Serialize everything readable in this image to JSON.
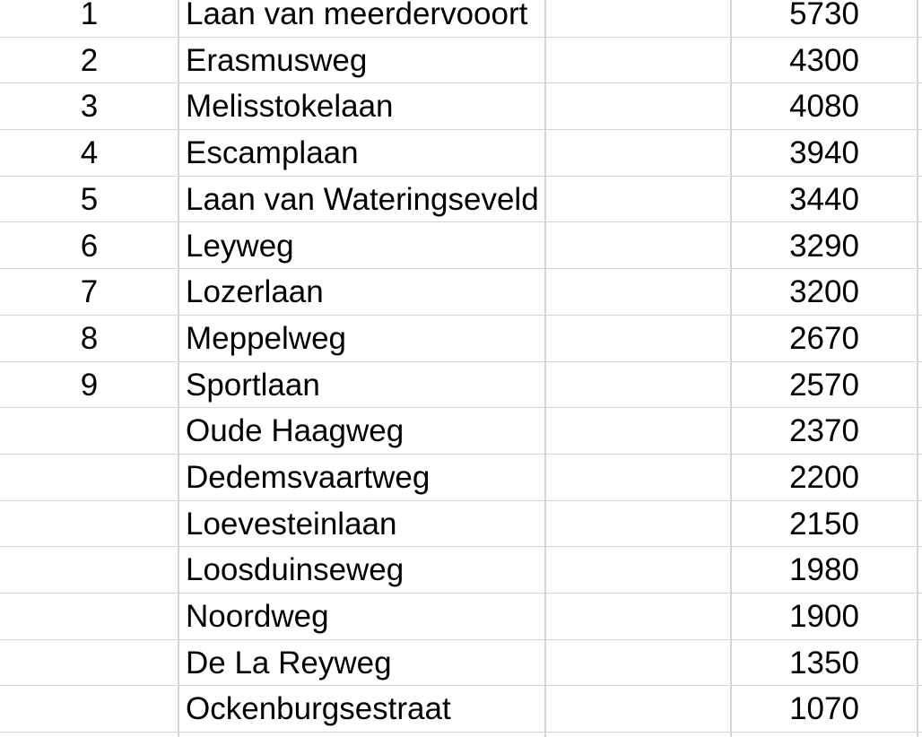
{
  "app": {
    "description": "spreadsheet-grid-crop"
  },
  "colors": {
    "background": "#ffffff",
    "gridline": "#d5d5d5",
    "text": "#000000"
  },
  "table": {
    "columns": [
      {
        "key": "rank",
        "align": "center"
      },
      {
        "key": "street",
        "align": "left"
      },
      {
        "key": "spacer",
        "align": "left"
      },
      {
        "key": "value",
        "align": "center"
      }
    ],
    "rows": [
      {
        "rank": "1",
        "street": "Laan van meerdervooort",
        "spacer": "",
        "value": "5730"
      },
      {
        "rank": "2",
        "street": "Erasmusweg",
        "spacer": "",
        "value": "4300"
      },
      {
        "rank": "3",
        "street": "Melisstokelaan",
        "spacer": "",
        "value": "4080"
      },
      {
        "rank": "4",
        "street": "Escamplaan",
        "spacer": "",
        "value": "3940"
      },
      {
        "rank": "5",
        "street": "Laan van Wateringseveld",
        "spacer": "",
        "value": "3440"
      },
      {
        "rank": "6",
        "street": "Leyweg",
        "spacer": "",
        "value": "3290"
      },
      {
        "rank": "7",
        "street": "Lozerlaan",
        "spacer": "",
        "value": "3200"
      },
      {
        "rank": "8",
        "street": "Meppelweg",
        "spacer": "",
        "value": "2670"
      },
      {
        "rank": "9",
        "street": "Sportlaan",
        "spacer": "",
        "value": "2570"
      },
      {
        "rank": "",
        "street": "Oude Haagweg",
        "spacer": "",
        "value": "2370"
      },
      {
        "rank": "",
        "street": "Dedemsvaartweg",
        "spacer": "",
        "value": "2200"
      },
      {
        "rank": "",
        "street": "Loevesteinlaan",
        "spacer": "",
        "value": "2150"
      },
      {
        "rank": "",
        "street": "Loosduinseweg",
        "spacer": "",
        "value": "1980"
      },
      {
        "rank": "",
        "street": "Noordweg",
        "spacer": "",
        "value": "1900"
      },
      {
        "rank": "",
        "street": "De La Reyweg",
        "spacer": "",
        "value": "1350"
      },
      {
        "rank": "",
        "street": "Ockenburgsestraat",
        "spacer": "",
        "value": "1070"
      }
    ]
  }
}
